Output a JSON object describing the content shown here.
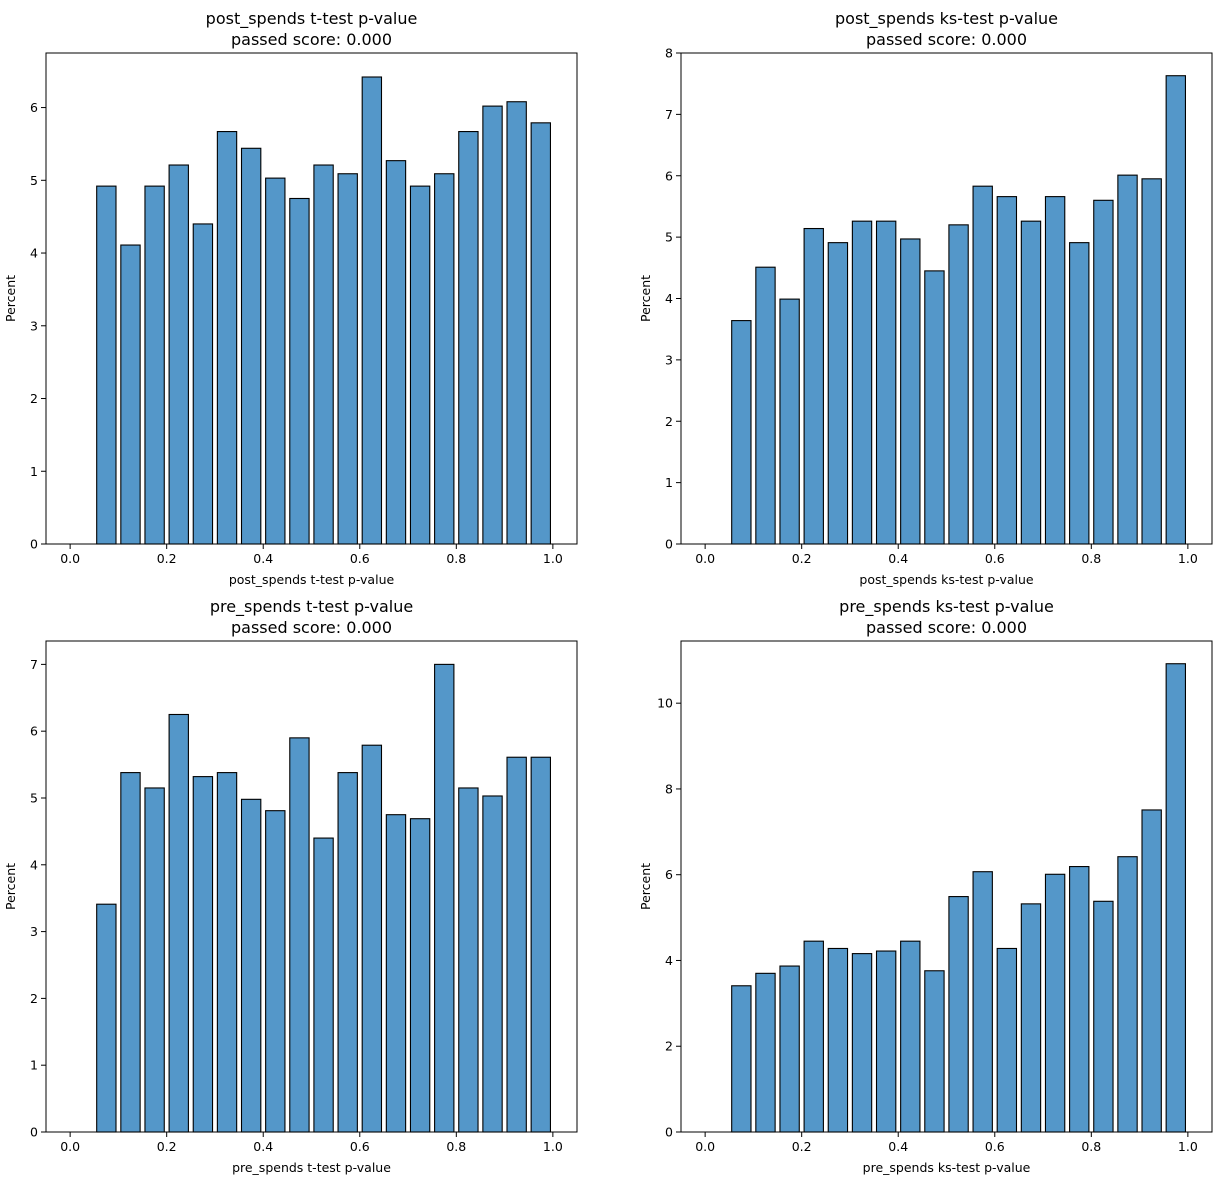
{
  "figure": {
    "bar_color": "#5497c9",
    "edge_color": "#000000"
  },
  "chart_data": [
    {
      "type": "bar",
      "title_line1": "post_spends t-test p-value",
      "title_line2": "passed score: 0.000",
      "xlabel": "post_spends t-test p-value",
      "ylabel": "Percent",
      "xlim": [
        -0.05,
        1.05
      ],
      "ylim": [
        0,
        6.75
      ],
      "xticks": [
        "0.0",
        "0.2",
        "0.4",
        "0.6",
        "0.8",
        "1.0"
      ],
      "xtick_values": [
        0.0,
        0.2,
        0.4,
        0.6,
        0.8,
        1.0
      ],
      "yticks": [
        "0",
        "1",
        "2",
        "3",
        "4",
        "5",
        "6"
      ],
      "ytick_values": [
        0,
        1,
        2,
        3,
        4,
        5,
        6
      ],
      "bin_edges": [
        0.0,
        0.05,
        0.1,
        0.15,
        0.2,
        0.25,
        0.3,
        0.35,
        0.4,
        0.45,
        0.5,
        0.55,
        0.6,
        0.65,
        0.7,
        0.75,
        0.8,
        0.85,
        0.9,
        0.95,
        1.0
      ],
      "values": [
        0.0,
        4.92,
        4.11,
        4.92,
        5.21,
        4.4,
        5.67,
        5.44,
        5.03,
        4.75,
        5.21,
        5.09,
        6.42,
        5.27,
        4.92,
        5.09,
        5.67,
        6.02,
        6.08,
        5.79
      ]
    },
    {
      "type": "bar",
      "title_line1": "post_spends ks-test p-value",
      "title_line2": "passed score: 0.000",
      "xlabel": "post_spends ks-test p-value",
      "ylabel": "Percent",
      "xlim": [
        -0.05,
        1.05
      ],
      "ylim": [
        0,
        8.0
      ],
      "xticks": [
        "0.0",
        "0.2",
        "0.4",
        "0.6",
        "0.8",
        "1.0"
      ],
      "xtick_values": [
        0.0,
        0.2,
        0.4,
        0.6,
        0.8,
        1.0
      ],
      "yticks": [
        "0",
        "1",
        "2",
        "3",
        "4",
        "5",
        "6",
        "7",
        "8"
      ],
      "ytick_values": [
        0,
        1,
        2,
        3,
        4,
        5,
        6,
        7,
        8
      ],
      "bin_edges": [
        0.0,
        0.05,
        0.1,
        0.15,
        0.2,
        0.25,
        0.3,
        0.35,
        0.4,
        0.45,
        0.5,
        0.55,
        0.6,
        0.65,
        0.7,
        0.75,
        0.8,
        0.85,
        0.9,
        0.95,
        1.0
      ],
      "values": [
        0.0,
        3.64,
        4.51,
        3.99,
        5.14,
        4.91,
        5.26,
        5.26,
        4.97,
        4.45,
        5.2,
        5.83,
        5.66,
        5.26,
        5.66,
        4.91,
        5.6,
        6.01,
        5.95,
        7.63
      ]
    },
    {
      "type": "bar",
      "title_line1": "pre_spends t-test p-value",
      "title_line2": "passed score: 0.000",
      "xlabel": "pre_spends t-test p-value",
      "ylabel": "Percent",
      "xlim": [
        -0.05,
        1.05
      ],
      "ylim": [
        0,
        7.35
      ],
      "xticks": [
        "0.0",
        "0.2",
        "0.4",
        "0.6",
        "0.8",
        "1.0"
      ],
      "xtick_values": [
        0.0,
        0.2,
        0.4,
        0.6,
        0.8,
        1.0
      ],
      "yticks": [
        "0",
        "1",
        "2",
        "3",
        "4",
        "5",
        "6",
        "7"
      ],
      "ytick_values": [
        0,
        1,
        2,
        3,
        4,
        5,
        6,
        7
      ],
      "bin_edges": [
        0.0,
        0.05,
        0.1,
        0.15,
        0.2,
        0.25,
        0.3,
        0.35,
        0.4,
        0.45,
        0.5,
        0.55,
        0.6,
        0.65,
        0.7,
        0.75,
        0.8,
        0.85,
        0.9,
        0.95,
        1.0
      ],
      "values": [
        0.0,
        3.41,
        5.38,
        5.15,
        6.25,
        5.32,
        5.38,
        4.98,
        4.81,
        5.9,
        4.4,
        5.38,
        5.79,
        4.75,
        4.69,
        7.0,
        5.15,
        5.03,
        5.61,
        5.61
      ]
    },
    {
      "type": "bar",
      "title_line1": "pre_spends ks-test p-value",
      "title_line2": "passed score: 0.000",
      "xlabel": "pre_spends ks-test p-value",
      "ylabel": "Percent",
      "xlim": [
        -0.05,
        1.05
      ],
      "ylim": [
        0,
        11.45
      ],
      "xticks": [
        "0.0",
        "0.2",
        "0.4",
        "0.6",
        "0.8",
        "1.0"
      ],
      "xtick_values": [
        0.0,
        0.2,
        0.4,
        0.6,
        0.8,
        1.0
      ],
      "yticks": [
        "0",
        "2",
        "4",
        "6",
        "8",
        "10"
      ],
      "ytick_values": [
        0,
        2,
        4,
        6,
        8,
        10
      ],
      "bin_edges": [
        0.0,
        0.05,
        0.1,
        0.15,
        0.2,
        0.25,
        0.3,
        0.35,
        0.4,
        0.45,
        0.5,
        0.55,
        0.6,
        0.65,
        0.7,
        0.75,
        0.8,
        0.85,
        0.9,
        0.95,
        1.0
      ],
      "values": [
        0.0,
        3.41,
        3.7,
        3.87,
        4.45,
        4.28,
        4.16,
        4.22,
        4.45,
        3.76,
        5.49,
        6.07,
        4.28,
        5.32,
        6.01,
        6.19,
        5.38,
        6.42,
        7.51,
        10.92
      ]
    }
  ]
}
